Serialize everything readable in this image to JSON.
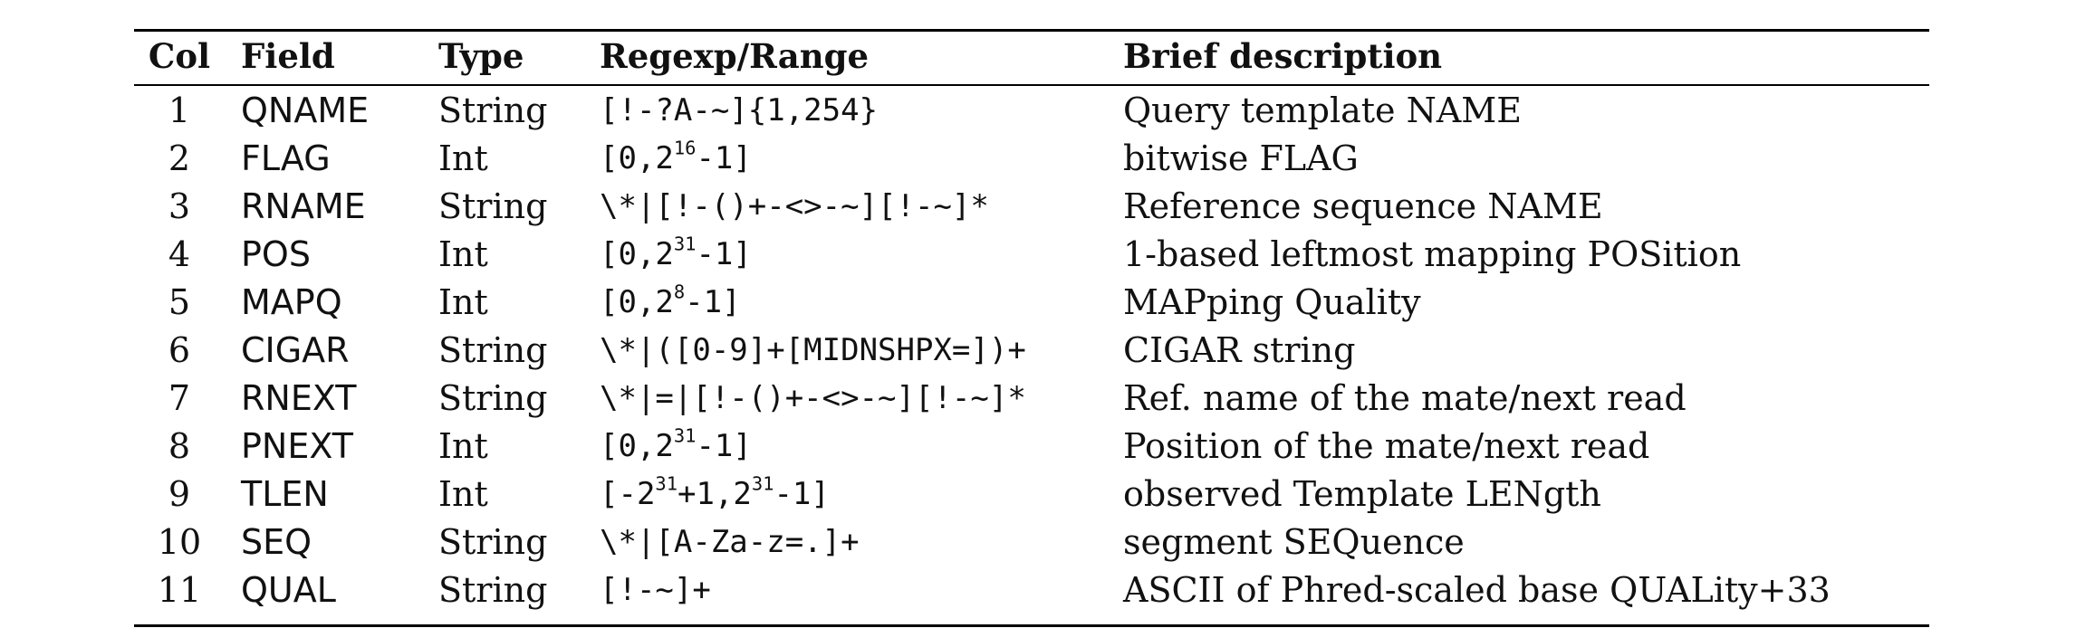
{
  "headers": {
    "col": "Col",
    "field": "Field",
    "type": "Type",
    "regexp": "Regexp/Range",
    "description": "Brief description"
  },
  "rows": [
    {
      "col": "1",
      "field": "QNAME",
      "type": "String",
      "regex": {
        "pre": "[!-?A-~]{1,254}"
      },
      "desc": "Query template NAME"
    },
    {
      "col": "2",
      "field": "FLAG",
      "type": "Int",
      "regex": {
        "pre": "[0,2",
        "sup": "16",
        "post": "-1]"
      },
      "desc": "bitwise FLAG"
    },
    {
      "col": "3",
      "field": "RNAME",
      "type": "String",
      "regex": {
        "pre": "\\*|[!-()+-<>-~][!-~]*"
      },
      "desc": "Reference sequence NAME"
    },
    {
      "col": "4",
      "field": "POS",
      "type": "Int",
      "regex": {
        "pre": "[0,2",
        "sup": "31",
        "post": "-1]"
      },
      "desc": "1-based leftmost mapping POSition"
    },
    {
      "col": "5",
      "field": "MAPQ",
      "type": "Int",
      "regex": {
        "pre": "[0,2",
        "sup": "8",
        "post": "-1]"
      },
      "desc": "MAPping Quality"
    },
    {
      "col": "6",
      "field": "CIGAR",
      "type": "String",
      "regex": {
        "pre": "\\*|([0-9]+[MIDNSHPX=])+"
      },
      "desc": "CIGAR string"
    },
    {
      "col": "7",
      "field": "RNEXT",
      "type": "String",
      "regex": {
        "pre": "\\*|=|[!-()+-<>-~][!-~]*"
      },
      "desc": "Ref. name of the mate/next read"
    },
    {
      "col": "8",
      "field": "PNEXT",
      "type": "Int",
      "regex": {
        "pre": "[0,2",
        "sup": "31",
        "post": "-1]"
      },
      "desc": "Position of the mate/next read"
    },
    {
      "col": "9",
      "field": "TLEN",
      "type": "Int",
      "regex": {
        "pre": "[-2",
        "sup": "31",
        "mid": "+1,2",
        "sup2": "31",
        "post": "-1]"
      },
      "desc": "observed Template LENgth"
    },
    {
      "col": "10",
      "field": "SEQ",
      "type": "String",
      "regex": {
        "pre": "\\*|[A-Za-z=.]+"
      },
      "desc": "segment SEQuence"
    },
    {
      "col": "11",
      "field": "QUAL",
      "type": "String",
      "regex": {
        "pre": "[!-~]+"
      },
      "desc": "ASCII of Phred-scaled base QUALity+33"
    }
  ]
}
